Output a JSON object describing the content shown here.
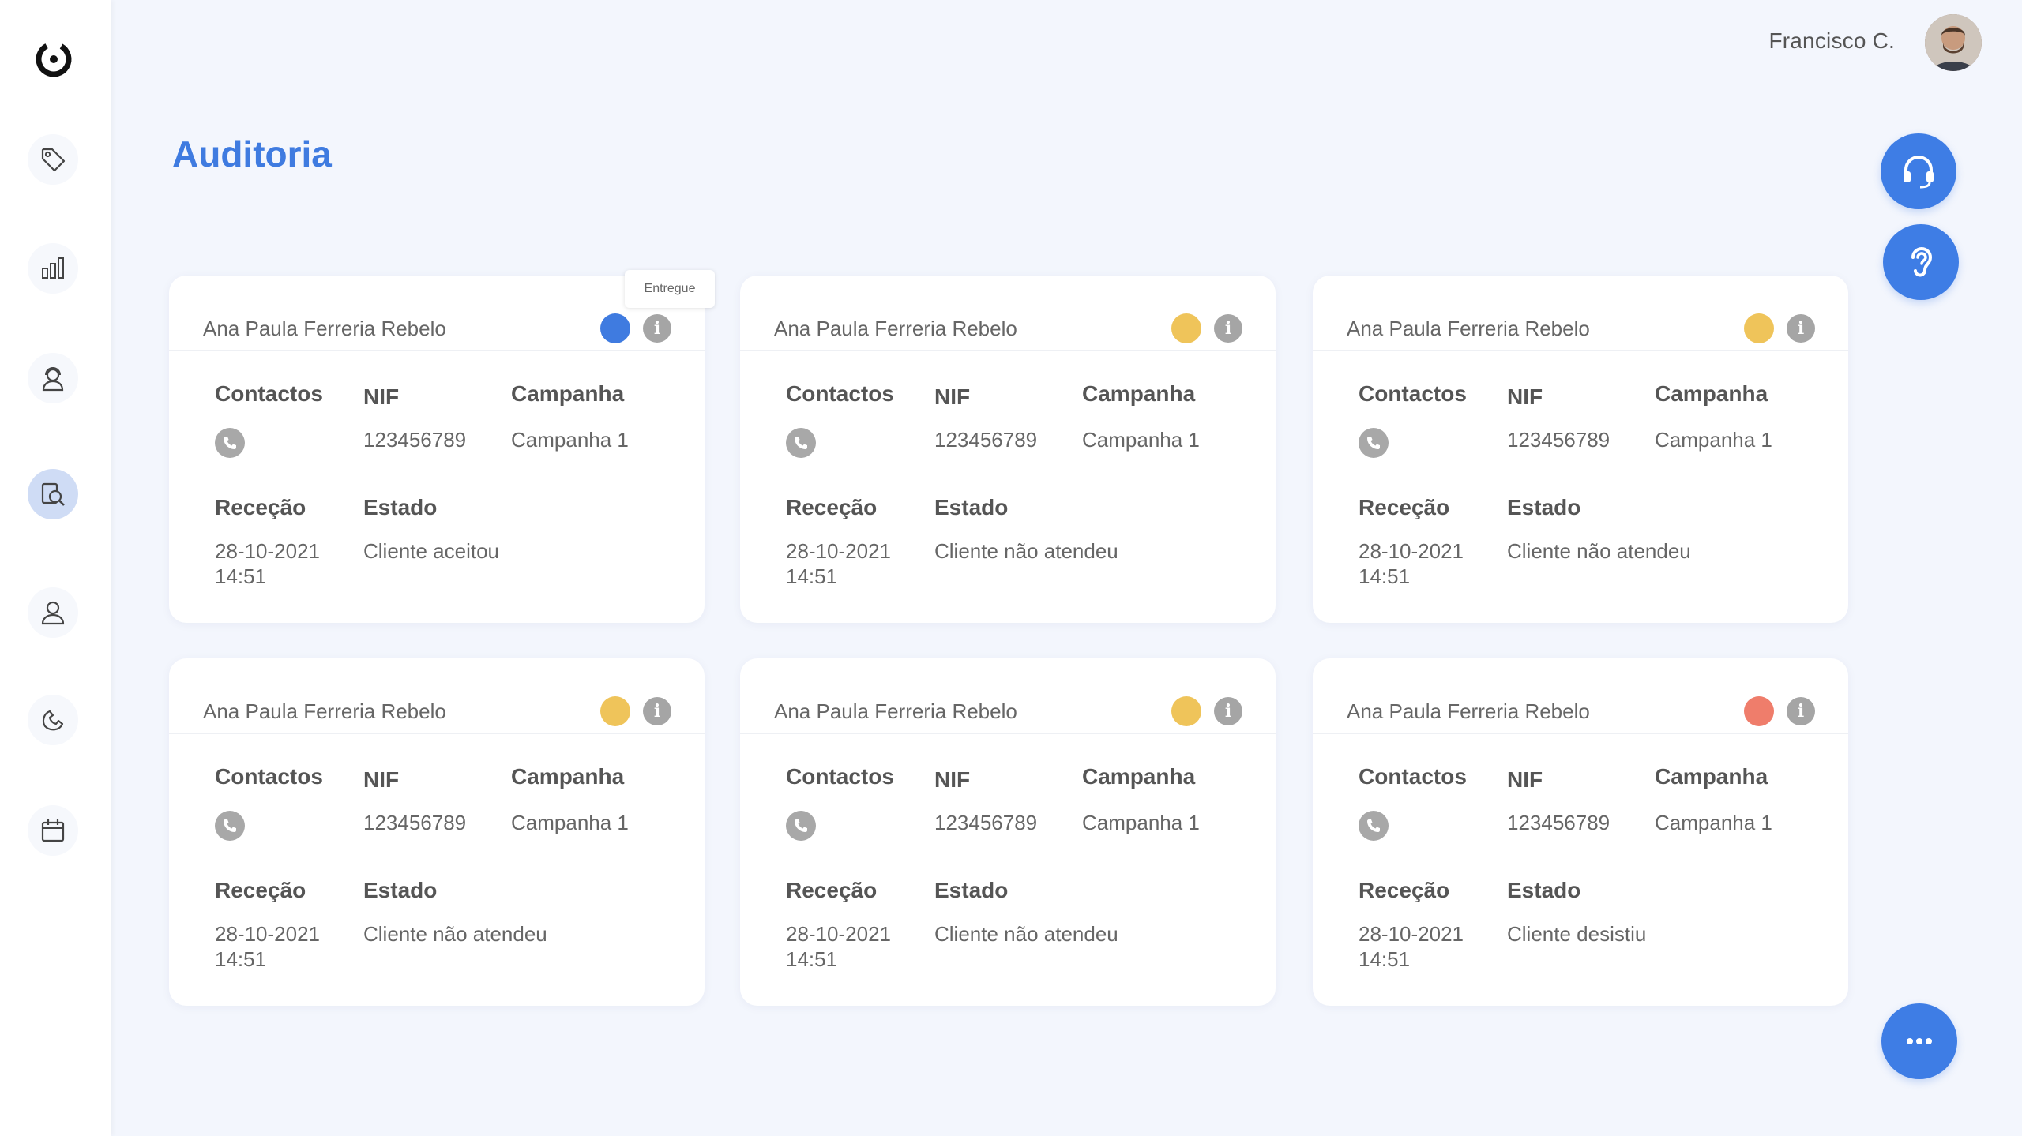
{
  "header": {
    "user_name": "Francisco C."
  },
  "page": {
    "title": "Auditoria"
  },
  "tooltip": {
    "text": "Entregue"
  },
  "labels": {
    "contactos": "Contactos",
    "nif": "NIF",
    "campanha": "Campanha",
    "rececao": "Receção",
    "estado": "Estado",
    "info": "i"
  },
  "colors": {
    "accent": "#3e7de5",
    "status_blue": "#3f7be0",
    "status_yellow": "#efc45a",
    "status_red": "#ef7d6b"
  },
  "cards": [
    {
      "name": "Ana Paula Ferreria Rebelo",
      "status_color": "#3f7be0",
      "nif": "123456789",
      "campanha": "Campanha 1",
      "rececao_date": "28-10-2021",
      "rececao_time": "14:51",
      "estado": "Cliente aceitou"
    },
    {
      "name": "Ana Paula Ferreria Rebelo",
      "status_color": "#efc45a",
      "nif": "123456789",
      "campanha": "Campanha 1",
      "rececao_date": "28-10-2021",
      "rececao_time": "14:51",
      "estado": "Cliente não atendeu"
    },
    {
      "name": "Ana Paula Ferreria Rebelo",
      "status_color": "#efc45a",
      "nif": "123456789",
      "campanha": "Campanha 1",
      "rececao_date": "28-10-2021",
      "rececao_time": "14:51",
      "estado": "Cliente não atendeu"
    },
    {
      "name": "Ana Paula Ferreria Rebelo",
      "status_color": "#efc45a",
      "nif": "123456789",
      "campanha": "Campanha 1",
      "rececao_date": "28-10-2021",
      "rececao_time": "14:51",
      "estado": "Cliente não atendeu"
    },
    {
      "name": "Ana Paula Ferreria Rebelo",
      "status_color": "#efc45a",
      "nif": "123456789",
      "campanha": "Campanha 1",
      "rececao_date": "28-10-2021",
      "rececao_time": "14:51",
      "estado": "Cliente não atendeu"
    },
    {
      "name": "Ana Paula Ferreria Rebelo",
      "status_color": "#ef7d6b",
      "nif": "123456789",
      "campanha": "Campanha 1",
      "rececao_date": "28-10-2021",
      "rececao_time": "14:51",
      "estado": "Cliente desistiu"
    }
  ],
  "sidebar": {
    "items": [
      {
        "icon": "tag-icon"
      },
      {
        "icon": "bar-chart-icon"
      },
      {
        "icon": "agent-icon"
      },
      {
        "icon": "audit-search-icon"
      },
      {
        "icon": "user-icon"
      },
      {
        "icon": "hand-phone-icon"
      },
      {
        "icon": "calendar-icon"
      }
    ]
  },
  "fabs": {
    "headset": "headset-icon",
    "listen": "ear-icon",
    "more": "more-icon"
  }
}
